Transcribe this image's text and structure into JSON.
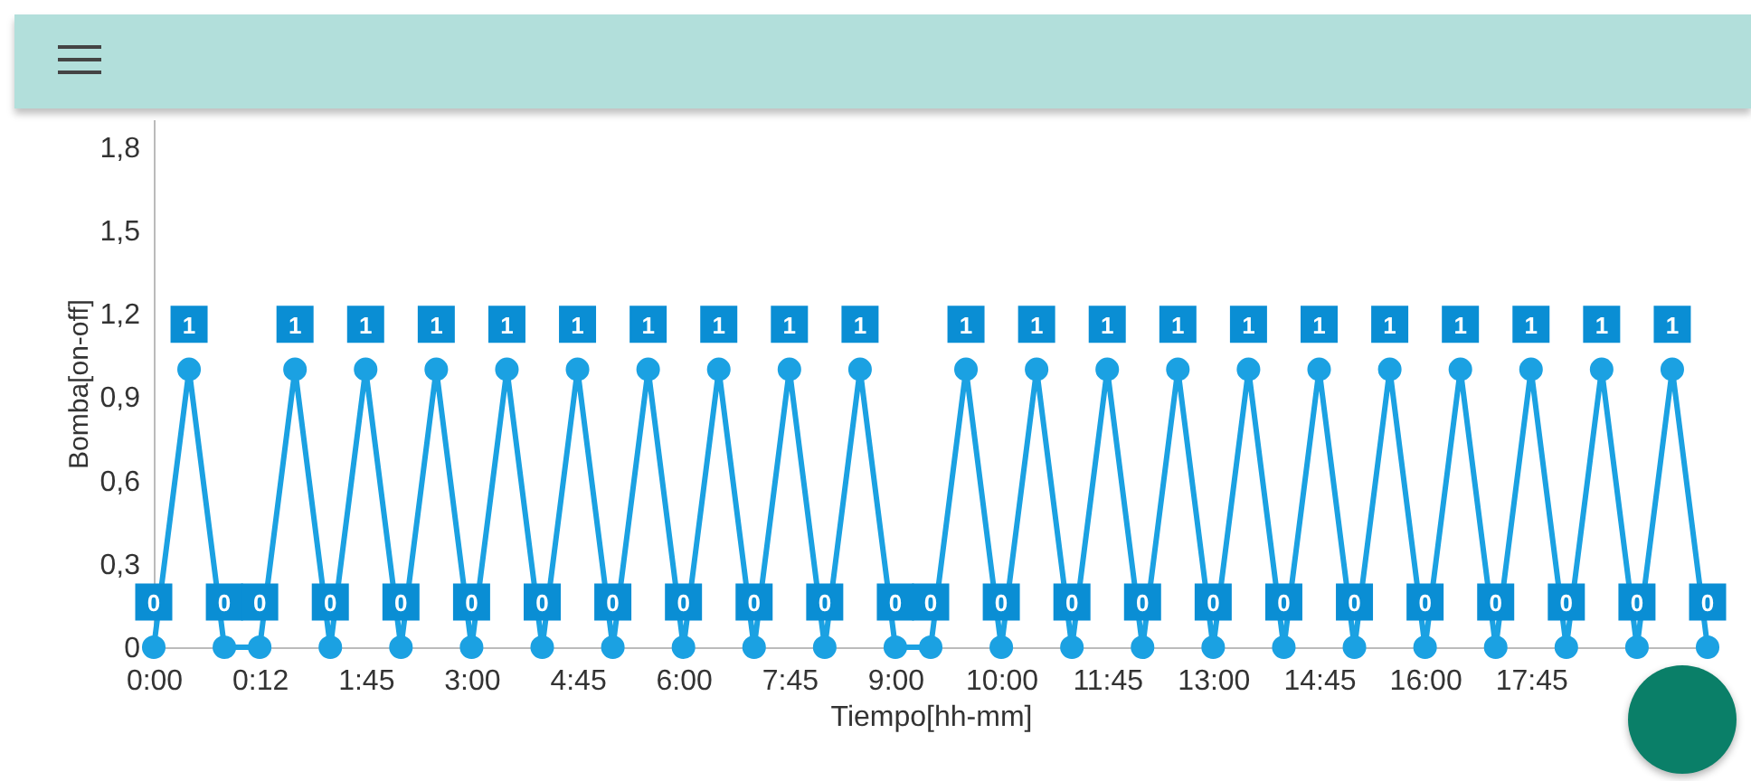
{
  "chart_data": {
    "type": "line",
    "xlabel": "Tiempo[hh-mm]",
    "ylabel": "Bomba[on-off]",
    "categories": [
      "0:00",
      null,
      null,
      "0:12",
      null,
      null,
      "1:45",
      null,
      null,
      "3:00",
      null,
      null,
      "4:45",
      null,
      null,
      "6:00",
      null,
      null,
      "7:45",
      null,
      null,
      "9:00",
      null,
      null,
      "10:00",
      null,
      null,
      "11:45",
      null,
      null,
      "13:00",
      null,
      null,
      "14:45",
      null,
      null,
      "16:00",
      null,
      null,
      "17:45",
      null,
      null,
      null,
      null,
      null
    ],
    "series": [
      {
        "color": "#1ba1e2",
        "values": [
          0,
          1,
          0,
          0,
          1,
          0,
          1,
          0,
          1,
          0,
          1,
          0,
          1,
          0,
          1,
          0,
          1,
          0,
          1,
          0,
          1,
          0,
          0,
          1,
          0,
          1,
          0,
          1,
          0,
          1,
          0,
          1,
          0,
          1,
          0,
          1,
          0,
          1,
          0,
          1,
          0,
          1,
          0,
          1,
          0
        ]
      }
    ],
    "ylim": [
      0,
      1.9
    ],
    "yticks": [
      0,
      {
        "value": 0.3,
        "label": "0,3"
      },
      {
        "value": 0.6,
        "label": "0,6"
      },
      {
        "value": 0.9,
        "label": "0,9"
      },
      {
        "value": 1.2,
        "label": "1,2"
      },
      {
        "value": 1.5,
        "label": "1,5"
      },
      {
        "value": 1.8,
        "label": "1,8"
      }
    ],
    "marker": "circle",
    "data_labels": true
  }
}
